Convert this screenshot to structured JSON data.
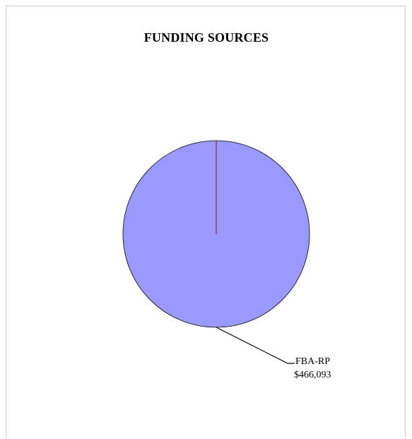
{
  "chart_data": {
    "type": "pie",
    "title": "FUNDING SOURCES",
    "slices": [
      {
        "label": "FBA-RP",
        "value": 466093,
        "value_text": "$466,093",
        "color": "#9999ff"
      }
    ],
    "colors": {
      "outline": "#000000",
      "start_line": "#8b3a1a"
    },
    "legend": "none"
  }
}
